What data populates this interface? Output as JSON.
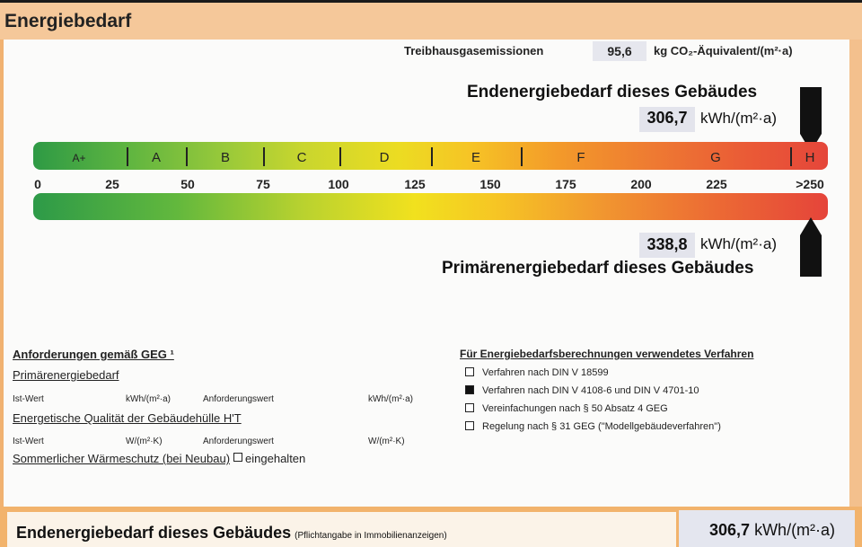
{
  "header": {
    "title": "Energiebedarf"
  },
  "ghg": {
    "label": "Treibhausgasemissionen",
    "value": "95,6",
    "unit": "kg CO₂-Äquivalent/(m²·a)"
  },
  "endenergie": {
    "title": "Endenergiebedarf dieses Gebäudes",
    "value": "306,7",
    "unit": "kWh/(m²·a)"
  },
  "scale": {
    "classes": [
      "A+",
      "A",
      "B",
      "C",
      "D",
      "E",
      "F",
      "G",
      "H"
    ],
    "ticks": [
      "0",
      "25",
      "50",
      "75",
      "100",
      "125",
      "150",
      "175",
      "200",
      "225",
      ">250"
    ]
  },
  "primaerenergie": {
    "title": "Primärenergiebedarf dieses Gebäudes",
    "value": "338,8",
    "unit": "kWh/(m²·a)"
  },
  "requirements": {
    "title": "Anforderungen gemäß GEG ¹",
    "primary_label": "Primärenergiebedarf",
    "ist_wert": "Ist-Wert",
    "anforderungswert": "Anforderungswert",
    "unit_kwh": "kWh/(m²·a)",
    "envelope_label": "Energetische Qualität der Gebäudehülle H'T",
    "unit_wk": "W/(m²·K)",
    "summer_label": "Sommerlicher Wärmeschutz (bei Neubau)",
    "summer_check": "eingehalten"
  },
  "procedure": {
    "title": "Für Energiebedarfsberechnungen verwendetes Verfahren",
    "items": [
      {
        "label": "Verfahren nach DIN V 18599",
        "checked": false
      },
      {
        "label": "Verfahren nach DIN V 4108-6 und DIN V 4701-10",
        "checked": true
      },
      {
        "label": "Vereinfachungen nach § 50 Absatz 4 GEG",
        "checked": false
      },
      {
        "label": "Regelung nach § 31 GEG (\"Modellgebäudeverfahren\")",
        "checked": false
      }
    ]
  },
  "footer": {
    "label": "Endenergiebedarf dieses Gebäudes",
    "note": "(Pflichtangabe in Immobilienanzeigen)",
    "value": "306,7",
    "unit": "kWh/(m²·a)"
  },
  "colors": {
    "header": "#f5c89a",
    "footer": "#f2b36c",
    "value_box": "#e3e4ec"
  }
}
